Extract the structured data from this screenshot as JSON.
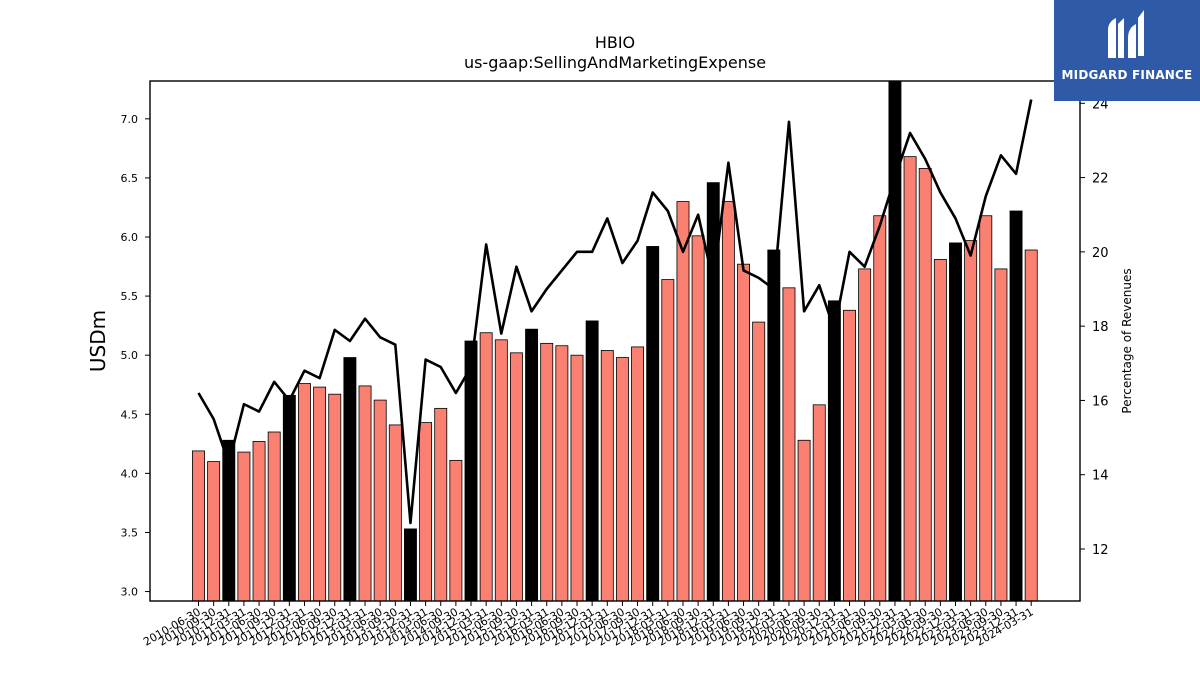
{
  "chart_data": {
    "type": "bar",
    "title": "HBIO",
    "subtitle": "us-gaap:SellingAndMarketingExpense",
    "ylabel": "USDm",
    "y2label": "Percentage of Revenues",
    "ylim": [
      2.92,
      7.32
    ],
    "y2lim": [
      10.6,
      24.6
    ],
    "yticks": [
      "3.0",
      "3.5",
      "4.0",
      "4.5",
      "5.0",
      "5.5",
      "6.0",
      "6.5",
      "7.0"
    ],
    "y2ticks": [
      "12",
      "14",
      "16",
      "18",
      "20",
      "22",
      "24"
    ],
    "grid": false,
    "colors": {
      "quarter_bar": "#fa8072",
      "fiscal_year_end_bar": "#000000",
      "line": "#000000"
    },
    "categories": [
      "2010-06-30",
      "2010-09-30",
      "2010-12-31",
      "2011-03-31",
      "2011-06-30",
      "2011-09-30",
      "2011-12-31",
      "2012-03-31",
      "2012-06-30",
      "2012-09-30",
      "2012-12-31",
      "2013-03-31",
      "2013-06-30",
      "2013-09-30",
      "2013-12-31",
      "2014-03-31",
      "2014-06-30",
      "2014-09-30",
      "2014-12-31",
      "2015-03-31",
      "2015-06-30",
      "2015-09-30",
      "2015-12-31",
      "2016-03-31",
      "2016-06-30",
      "2016-09-30",
      "2016-12-31",
      "2017-03-31",
      "2017-06-30",
      "2017-09-30",
      "2017-12-31",
      "2018-03-31",
      "2018-06-30",
      "2018-09-30",
      "2018-12-31",
      "2019-03-31",
      "2019-06-30",
      "2019-09-30",
      "2019-12-31",
      "2020-03-31",
      "2020-06-30",
      "2020-09-30",
      "2020-12-31",
      "2021-03-31",
      "2021-06-30",
      "2021-09-30",
      "2021-12-31",
      "2022-03-31",
      "2022-06-30",
      "2022-09-30",
      "2022-12-31",
      "2023-03-31",
      "2023-06-30",
      "2023-09-30",
      "2023-12-31",
      "2024-03-31"
    ],
    "series": [
      {
        "type": "bar",
        "axis": "left",
        "values": [
          4.19,
          4.1,
          4.28,
          4.18,
          4.27,
          4.35,
          4.66,
          4.76,
          4.73,
          4.67,
          4.98,
          4.74,
          4.62,
          4.41,
          3.53,
          4.43,
          4.55,
          4.11,
          5.12,
          5.19,
          5.13,
          5.02,
          5.22,
          5.1,
          5.08,
          5.0,
          5.29,
          5.04,
          4.98,
          5.07,
          5.92,
          5.64,
          6.3,
          6.01,
          6.46,
          6.3,
          5.77,
          5.28,
          5.89,
          5.57,
          4.28,
          4.58,
          5.46,
          5.38,
          5.73,
          6.18,
          7.33,
          6.68,
          6.58,
          5.81,
          5.95,
          5.97,
          6.18,
          5.73,
          6.22,
          5.89
        ],
        "highlight": [
          false,
          false,
          true,
          false,
          false,
          false,
          true,
          false,
          false,
          false,
          true,
          false,
          false,
          false,
          true,
          false,
          false,
          false,
          true,
          false,
          false,
          false,
          true,
          false,
          false,
          false,
          true,
          false,
          false,
          false,
          true,
          false,
          false,
          false,
          true,
          false,
          false,
          false,
          true,
          false,
          false,
          false,
          true,
          false,
          false,
          false,
          true,
          false,
          false,
          false,
          true,
          false,
          false,
          false,
          true,
          false
        ]
      },
      {
        "type": "line",
        "axis": "right",
        "values": [
          16.2,
          15.5,
          14.3,
          15.9,
          15.7,
          16.5,
          16.0,
          16.8,
          16.6,
          17.9,
          17.6,
          18.2,
          17.7,
          17.5,
          12.7,
          17.1,
          16.9,
          16.2,
          16.9,
          20.2,
          17.8,
          19.6,
          18.4,
          19.0,
          19.5,
          20.0,
          20.0,
          20.9,
          19.7,
          20.3,
          21.6,
          21.1,
          20.0,
          21.0,
          19.2,
          22.4,
          19.5,
          19.3,
          19.0,
          23.5,
          18.4,
          19.1,
          17.9,
          20.0,
          19.6,
          20.7,
          22.0,
          23.2,
          22.5,
          21.6,
          20.9,
          19.9,
          21.5,
          22.6,
          22.1,
          24.1
        ]
      }
    ]
  },
  "logo": {
    "name": "MIDGARD FINANCE",
    "icon": "midgard-logo-icon",
    "color": "#2f5aa8"
  }
}
